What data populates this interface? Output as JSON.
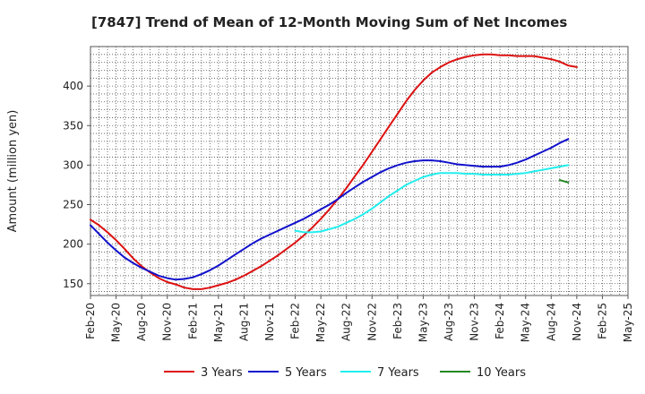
{
  "chart_data": {
    "type": "line",
    "title": "[7847]  Trend of Mean of 12-Month Moving Sum of Net Incomes",
    "xlabel": "",
    "ylabel": "Amount (million yen)",
    "ylim": [
      135,
      450
    ],
    "yticks": [
      150,
      200,
      250,
      300,
      350,
      400
    ],
    "grid": true,
    "legend_position": "bottom",
    "x_tick_labels": [
      "Feb-20",
      "May-20",
      "Aug-20",
      "Nov-20",
      "Feb-21",
      "May-21",
      "Aug-21",
      "Nov-21",
      "Feb-22",
      "May-22",
      "Aug-22",
      "Nov-22",
      "Feb-23",
      "May-23",
      "Aug-23",
      "Nov-23",
      "Feb-24",
      "May-24",
      "Aug-24",
      "Nov-24",
      "Feb-25",
      "May-25"
    ],
    "series": [
      {
        "name": "3 Years",
        "color": "#dd1111",
        "points": [
          [
            0,
            231
          ],
          [
            1,
            224
          ],
          [
            2,
            215
          ],
          [
            3,
            205
          ],
          [
            4,
            194
          ],
          [
            5,
            182
          ],
          [
            6,
            172
          ],
          [
            7,
            164
          ],
          [
            8,
            157
          ],
          [
            9,
            152
          ],
          [
            10,
            149
          ],
          [
            11,
            145
          ],
          [
            12,
            143
          ],
          [
            13,
            143
          ],
          [
            14,
            145
          ],
          [
            15,
            148
          ],
          [
            16,
            151
          ],
          [
            17,
            155
          ],
          [
            18,
            160
          ],
          [
            19,
            166
          ],
          [
            20,
            172
          ],
          [
            21,
            179
          ],
          [
            22,
            186
          ],
          [
            23,
            194
          ],
          [
            24,
            202
          ],
          [
            25,
            211
          ],
          [
            26,
            221
          ],
          [
            27,
            232
          ],
          [
            28,
            244
          ],
          [
            29,
            257
          ],
          [
            30,
            271
          ],
          [
            31,
            286
          ],
          [
            32,
            301
          ],
          [
            33,
            317
          ],
          [
            34,
            333
          ],
          [
            35,
            349
          ],
          [
            36,
            365
          ],
          [
            37,
            381
          ],
          [
            38,
            395
          ],
          [
            39,
            407
          ],
          [
            40,
            417
          ],
          [
            41,
            424
          ],
          [
            42,
            430
          ],
          [
            43,
            434
          ],
          [
            44,
            437
          ],
          [
            45,
            439
          ],
          [
            46,
            440
          ],
          [
            47,
            440
          ],
          [
            48,
            439
          ],
          [
            49,
            439
          ],
          [
            50,
            438
          ],
          [
            51,
            438
          ],
          [
            52,
            438
          ],
          [
            53,
            436
          ],
          [
            54,
            434
          ],
          [
            55,
            431
          ],
          [
            56,
            426
          ],
          [
            57,
            424
          ]
        ]
      },
      {
        "name": "5 Years",
        "color": "#1111cc",
        "points": [
          [
            0,
            224
          ],
          [
            1,
            213
          ],
          [
            2,
            202
          ],
          [
            3,
            192
          ],
          [
            4,
            183
          ],
          [
            5,
            176
          ],
          [
            6,
            170
          ],
          [
            7,
            165
          ],
          [
            8,
            160
          ],
          [
            9,
            157
          ],
          [
            10,
            155
          ],
          [
            11,
            156
          ],
          [
            12,
            158
          ],
          [
            13,
            162
          ],
          [
            14,
            167
          ],
          [
            15,
            173
          ],
          [
            16,
            180
          ],
          [
            17,
            187
          ],
          [
            18,
            194
          ],
          [
            19,
            201
          ],
          [
            20,
            207
          ],
          [
            21,
            212
          ],
          [
            22,
            217
          ],
          [
            23,
            222
          ],
          [
            24,
            227
          ],
          [
            25,
            232
          ],
          [
            26,
            238
          ],
          [
            27,
            244
          ],
          [
            28,
            250
          ],
          [
            29,
            257
          ],
          [
            30,
            265
          ],
          [
            31,
            272
          ],
          [
            32,
            279
          ],
          [
            33,
            285
          ],
          [
            34,
            291
          ],
          [
            35,
            296
          ],
          [
            36,
            300
          ],
          [
            37,
            303
          ],
          [
            38,
            305
          ],
          [
            39,
            306
          ],
          [
            40,
            306
          ],
          [
            41,
            305
          ],
          [
            42,
            303
          ],
          [
            43,
            301
          ],
          [
            44,
            300
          ],
          [
            45,
            299
          ],
          [
            46,
            298
          ],
          [
            47,
            298
          ],
          [
            48,
            298
          ],
          [
            49,
            300
          ],
          [
            50,
            303
          ],
          [
            51,
            307
          ],
          [
            52,
            312
          ],
          [
            53,
            317
          ],
          [
            54,
            322
          ],
          [
            55,
            328
          ],
          [
            56,
            333
          ]
        ]
      },
      {
        "name": "7 Years",
        "color": "#22eeee",
        "points": [
          [
            24,
            217
          ],
          [
            25,
            215
          ],
          [
            26,
            215
          ],
          [
            27,
            216
          ],
          [
            28,
            219
          ],
          [
            29,
            222
          ],
          [
            30,
            227
          ],
          [
            31,
            232
          ],
          [
            32,
            238
          ],
          [
            33,
            245
          ],
          [
            34,
            253
          ],
          [
            35,
            261
          ],
          [
            36,
            268
          ],
          [
            37,
            275
          ],
          [
            38,
            280
          ],
          [
            39,
            285
          ],
          [
            40,
            288
          ],
          [
            41,
            290
          ],
          [
            42,
            290
          ],
          [
            43,
            290
          ],
          [
            44,
            289
          ],
          [
            45,
            289
          ],
          [
            46,
            288
          ],
          [
            47,
            288
          ],
          [
            48,
            288
          ],
          [
            49,
            288
          ],
          [
            50,
            289
          ],
          [
            51,
            290
          ],
          [
            52,
            292
          ],
          [
            53,
            294
          ],
          [
            54,
            296
          ],
          [
            55,
            298
          ],
          [
            56,
            300
          ]
        ]
      },
      {
        "name": "10 Years",
        "color": "#228822",
        "points": [
          [
            55,
            281
          ],
          [
            56,
            278
          ]
        ]
      }
    ]
  }
}
